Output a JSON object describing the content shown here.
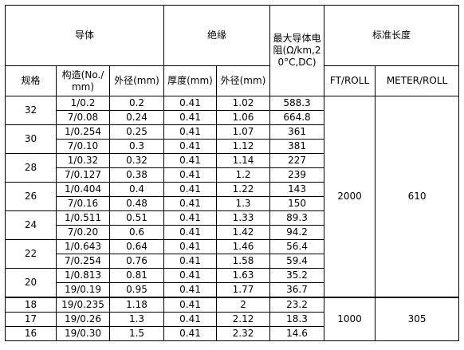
{
  "table": {
    "groups": [
      "导体",
      "绝缘",
      "最大导体电阻(Ω/km,20°C,DC)",
      "标准长度"
    ],
    "columns": [
      "规格",
      "构造(No./mm)",
      "外径(mm)",
      "厚度(mm)",
      "外径(mm)",
      "FT/ROLL",
      "METER/ROLL"
    ],
    "length_groups": [
      {
        "ft": "2000",
        "meter": "610",
        "gauges": [
          {
            "size": "32",
            "rows": [
              [
                "1/0.2",
                "0.2",
                "0.41",
                "1.02",
                "588.3"
              ],
              [
                "7/0.08",
                "0.24",
                "0.41",
                "1.06",
                "664.8"
              ]
            ]
          },
          {
            "size": "30",
            "rows": [
              [
                "1/0.254",
                "0.25",
                "0.41",
                "1.07",
                "361"
              ],
              [
                "7/0.10",
                "0.3",
                "0.41",
                "1.12",
                "381"
              ]
            ]
          },
          {
            "size": "28",
            "rows": [
              [
                "1/0.32",
                "0.32",
                "0.41",
                "1.14",
                "227"
              ],
              [
                "7/0.127",
                "0.38",
                "0.41",
                "1.2",
                "239"
              ]
            ]
          },
          {
            "size": "26",
            "rows": [
              [
                "1/0.404",
                "0.4",
                "0.41",
                "1.22",
                "143"
              ],
              [
                "7/0.16",
                "0.48",
                "0.41",
                "1.3",
                "150"
              ]
            ]
          },
          {
            "size": "24",
            "rows": [
              [
                "1/0.511",
                "0.51",
                "0.41",
                "1.33",
                "89.3"
              ],
              [
                "7/0.20",
                "0.6",
                "0.41",
                "1.42",
                "94.2"
              ]
            ]
          },
          {
            "size": "22",
            "rows": [
              [
                "1/0.643",
                "0.64",
                "0.41",
                "1.46",
                "56.4"
              ],
              [
                "7/0.254",
                "0.76",
                "0.41",
                "1.58",
                "59.4"
              ]
            ]
          },
          {
            "size": "20",
            "rows": [
              [
                "1/0.813",
                "0.81",
                "0.41",
                "1.63",
                "35.2"
              ],
              [
                "19/0.19",
                "0.95",
                "0.41",
                "1.77",
                "36.7"
              ]
            ]
          }
        ]
      },
      {
        "ft": "1000",
        "meter": "305",
        "gauges": [
          {
            "size": "18",
            "rows": [
              [
                "19/0.235",
                "1.18",
                "0.41",
                "2",
                "23.2"
              ]
            ]
          },
          {
            "size": "17",
            "rows": [
              [
                "19/0.26",
                "1.3",
                "0.41",
                "2.12",
                "18.3"
              ]
            ]
          },
          {
            "size": "16",
            "rows": [
              [
                "19/0.30",
                "1.5",
                "0.41",
                "2.32",
                "14.6"
              ]
            ]
          }
        ]
      }
    ]
  }
}
